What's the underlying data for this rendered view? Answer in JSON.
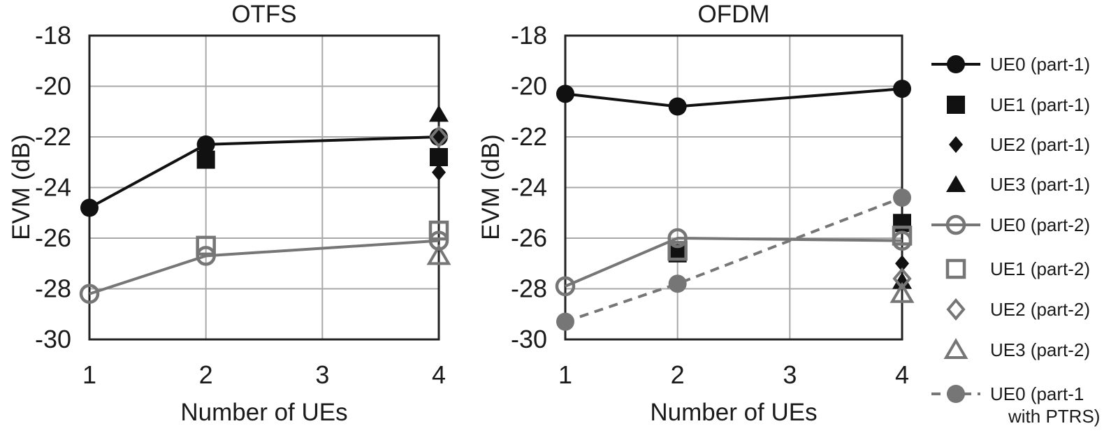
{
  "colors": {
    "black": "#111111",
    "gray": "#767676",
    "grid": "#a8a8a8",
    "axis": "#222222",
    "background": "#ffffff"
  },
  "chart_data": [
    {
      "type": "line",
      "title": "OTFS",
      "xlabel": "Number of UEs",
      "ylabel": "EVM (dB)",
      "x_ticks": [
        1,
        2,
        3,
        4
      ],
      "y_ticks": [
        -18,
        -20,
        -22,
        -24,
        -26,
        -28,
        -30
      ],
      "xlim": [
        1,
        4
      ],
      "ylim": [
        -30,
        -18
      ],
      "grid": true,
      "series": [
        {
          "name": "UE0 (part-1)",
          "marker": "circle-filled",
          "color_key": "black",
          "line": "solid",
          "points": [
            [
              1,
              -24.8
            ],
            [
              2,
              -22.3
            ],
            [
              4,
              -22.0
            ]
          ]
        },
        {
          "name": "UE1 (part-1)",
          "marker": "square-filled",
          "color_key": "black",
          "line": "none",
          "points": [
            [
              2,
              -22.9
            ],
            [
              4,
              -22.8
            ]
          ]
        },
        {
          "name": "UE2 (part-1)",
          "marker": "diamond-filled",
          "color_key": "black",
          "line": "none",
          "points": [
            [
              4,
              -23.4
            ]
          ]
        },
        {
          "name": "UE3 (part-1)",
          "marker": "triangle-filled",
          "color_key": "black",
          "line": "none",
          "points": [
            [
              4,
              -21.1
            ]
          ]
        },
        {
          "name": "UE0 (part-2)",
          "marker": "circle-open",
          "color_key": "gray",
          "line": "solid",
          "points": [
            [
              1,
              -28.2
            ],
            [
              2,
              -26.7
            ],
            [
              4,
              -26.1
            ]
          ]
        },
        {
          "name": "UE1 (part-2)",
          "marker": "square-open",
          "color_key": "gray",
          "line": "none",
          "points": [
            [
              2,
              -26.3
            ],
            [
              4,
              -25.7
            ]
          ]
        },
        {
          "name": "UE2 (part-2)",
          "marker": "diamond-open",
          "color_key": "gray",
          "line": "none",
          "points": [
            [
              4,
              -22.0
            ]
          ]
        },
        {
          "name": "UE3 (part-2)",
          "marker": "triangle-open",
          "color_key": "gray",
          "line": "none",
          "points": [
            [
              4,
              -26.7
            ]
          ]
        }
      ]
    },
    {
      "type": "line",
      "title": "OFDM",
      "xlabel": "Number of UEs",
      "ylabel": "EVM (dB)",
      "x_ticks": [
        1,
        2,
        3,
        4
      ],
      "y_ticks": [
        -18,
        -20,
        -22,
        -24,
        -26,
        -28,
        -30
      ],
      "xlim": [
        1,
        4
      ],
      "ylim": [
        -30,
        -18
      ],
      "grid": true,
      "series": [
        {
          "name": "UE0 (part-1)",
          "marker": "circle-filled",
          "color_key": "black",
          "line": "solid",
          "points": [
            [
              1,
              -20.3
            ],
            [
              2,
              -20.8
            ],
            [
              4,
              -20.1
            ]
          ]
        },
        {
          "name": "UE1 (part-1)",
          "marker": "square-filled",
          "color_key": "black",
          "line": "none",
          "points": [
            [
              2,
              -26.6
            ],
            [
              4,
              -25.4
            ]
          ]
        },
        {
          "name": "UE2 (part-1)",
          "marker": "diamond-filled",
          "color_key": "black",
          "line": "none",
          "points": [
            [
              4,
              -27.0
            ]
          ]
        },
        {
          "name": "UE3 (part-1)",
          "marker": "triangle-filled",
          "color_key": "black",
          "line": "none",
          "points": [
            [
              4,
              -27.7
            ]
          ]
        },
        {
          "name": "UE0 (part-2)",
          "marker": "circle-open",
          "color_key": "gray",
          "line": "solid",
          "points": [
            [
              1,
              -27.9
            ],
            [
              2,
              -26.0
            ],
            [
              4,
              -26.1
            ]
          ]
        },
        {
          "name": "UE1 (part-2)",
          "marker": "square-open",
          "color_key": "gray",
          "line": "none",
          "points": [
            [
              2,
              -26.5
            ],
            [
              4,
              -25.9
            ]
          ]
        },
        {
          "name": "UE2 (part-2)",
          "marker": "diamond-open",
          "color_key": "gray",
          "line": "none",
          "points": [
            [
              4,
              -27.6
            ]
          ]
        },
        {
          "name": "UE3 (part-2)",
          "marker": "triangle-open",
          "color_key": "gray",
          "line": "none",
          "points": [
            [
              4,
              -28.2
            ]
          ]
        },
        {
          "name": "UE0 (part-1 with PTRS)",
          "marker": "circle-filled",
          "color_key": "gray",
          "line": "dashed",
          "points": [
            [
              1,
              -29.3
            ],
            [
              2,
              -27.8
            ],
            [
              4,
              -24.4
            ]
          ]
        }
      ]
    }
  ],
  "legend": {
    "items": [
      {
        "label": "UE0 (part-1)",
        "marker": "circle-filled",
        "color_key": "black",
        "line": "solid"
      },
      {
        "label": "UE1 (part-1)",
        "marker": "square-filled",
        "color_key": "black",
        "line": "none"
      },
      {
        "label": "UE2 (part-1)",
        "marker": "diamond-filled",
        "color_key": "black",
        "line": "none"
      },
      {
        "label": "UE3 (part-1)",
        "marker": "triangle-filled",
        "color_key": "black",
        "line": "none"
      },
      {
        "label": "UE0 (part-2)",
        "marker": "circle-open",
        "color_key": "gray",
        "line": "solid"
      },
      {
        "label": "UE1 (part-2)",
        "marker": "square-open",
        "color_key": "gray",
        "line": "none"
      },
      {
        "label": "UE2 (part-2)",
        "marker": "diamond-open",
        "color_key": "gray",
        "line": "none"
      },
      {
        "label": "UE3 (part-2)",
        "marker": "triangle-open",
        "color_key": "gray",
        "line": "none"
      },
      {
        "label": "UE0 (part-1",
        "label2": "with PTRS)",
        "marker": "circle-filled",
        "color_key": "gray",
        "line": "dashed"
      }
    ]
  }
}
